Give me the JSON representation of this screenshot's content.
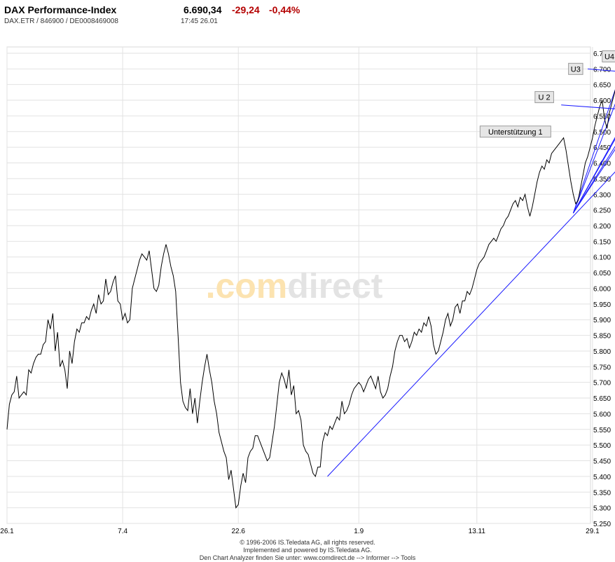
{
  "header": {
    "title": "DAX Performance-Index",
    "price": "6.690,34",
    "change": "-29,24",
    "change_pct": "-0,44%",
    "ids": "DAX.ETR  /  846900  /  DE0008469008",
    "time": "17:45  26.01"
  },
  "footer": {
    "line1": "© 1996-2006 IS.Teledata AG, all rights reserved.",
    "line2": "Implemented and powered by IS.Teledata AG.",
    "line3": "Den Chart Analyzer finden Sie unter: www.comdirect.de --> Informer --> Tools"
  },
  "watermark": {
    "part1": ".com",
    "part2": "direct"
  },
  "chart_data": {
    "type": "line",
    "ylim": [
      5250,
      6770
    ],
    "y_ticks": [
      "5.250",
      "5.300",
      "5.350",
      "5.400",
      "5.450",
      "5.500",
      "5.550",
      "5.600",
      "5.650",
      "5.700",
      "5.750",
      "5.800",
      "5.850",
      "5.900",
      "5.950",
      "6.000",
      "6.050",
      "6.100",
      "6.150",
      "6.200",
      "6.250",
      "6.300",
      "6.350",
      "6.400",
      "6.450",
      "6.500",
      "6.550",
      "6.600",
      "6.650",
      "6.700",
      "6.750"
    ],
    "x_ticks": [
      {
        "label": "26.1",
        "i": 0
      },
      {
        "label": "7.4",
        "i": 48
      },
      {
        "label": "22.6",
        "i": 96
      },
      {
        "label": "1.9",
        "i": 146
      },
      {
        "label": "13.11",
        "i": 195
      },
      {
        "label": "29.1",
        "i": 243
      }
    ],
    "line_color": "#000000",
    "grid": true,
    "series": [
      {
        "values": [
          5550,
          5630,
          5660,
          5670,
          5720,
          5650,
          5660,
          5670,
          5660,
          5740,
          5730,
          5760,
          5780,
          5790,
          5790,
          5820,
          5830,
          5900,
          5870,
          5920,
          5800,
          5860,
          5750,
          5770,
          5740,
          5680,
          5800,
          5760,
          5830,
          5870,
          5860,
          5890,
          5890,
          5910,
          5900,
          5930,
          5950,
          5920,
          5980,
          5950,
          5960,
          6030,
          5980,
          5990,
          6020,
          6040,
          5960,
          5950,
          5900,
          5920,
          5890,
          5900,
          6000,
          6030,
          6060,
          6090,
          6110,
          6100,
          6090,
          6120,
          6060,
          6000,
          5990,
          6010,
          6070,
          6110,
          6140,
          6110,
          6070,
          6040,
          5990,
          5850,
          5700,
          5640,
          5620,
          5610,
          5680,
          5600,
          5650,
          5570,
          5640,
          5700,
          5750,
          5790,
          5740,
          5700,
          5640,
          5600,
          5540,
          5510,
          5480,
          5460,
          5390,
          5420,
          5360,
          5300,
          5310,
          5370,
          5410,
          5380,
          5460,
          5480,
          5490,
          5530,
          5530,
          5510,
          5490,
          5470,
          5450,
          5460,
          5510,
          5560,
          5630,
          5700,
          5730,
          5710,
          5680,
          5740,
          5660,
          5690,
          5600,
          5610,
          5580,
          5500,
          5480,
          5470,
          5440,
          5410,
          5400,
          5430,
          5430,
          5510,
          5540,
          5530,
          5560,
          5550,
          5570,
          5590,
          5580,
          5640,
          5600,
          5610,
          5630,
          5660,
          5680,
          5690,
          5700,
          5690,
          5670,
          5690,
          5710,
          5720,
          5700,
          5680,
          5720,
          5670,
          5650,
          5660,
          5680,
          5720,
          5750,
          5800,
          5830,
          5850,
          5850,
          5830,
          5840,
          5810,
          5830,
          5860,
          5850,
          5870,
          5860,
          5890,
          5880,
          5910,
          5880,
          5820,
          5790,
          5800,
          5830,
          5860,
          5900,
          5920,
          5880,
          5900,
          5940,
          5950,
          5920,
          5960,
          5960,
          5990,
          5980,
          6000,
          6030,
          6060,
          6080,
          6090,
          6100,
          6120,
          6140,
          6150,
          6160,
          6150,
          6170,
          6190,
          6200,
          6220,
          6230,
          6250,
          6270,
          6280,
          6260,
          6290,
          6280,
          6300,
          6260,
          6230,
          6260,
          6300,
          6340,
          6370,
          6390,
          6380,
          6410,
          6400,
          6430,
          6440,
          6450,
          6460,
          6470,
          6480,
          6440,
          6390,
          6340,
          6300,
          6270,
          6280,
          6320,
          6360,
          6400,
          6420,
          6450,
          6480,
          6520,
          6550,
          6580,
          6600,
          6540,
          6510,
          6560,
          6590,
          6620,
          6650,
          6680,
          6700,
          6690,
          6650,
          6600,
          6610,
          6630,
          6600,
          6570,
          6620,
          6660,
          6690,
          6710,
          6700,
          6730,
          6740,
          6720,
          6700,
          6710,
          6740,
          6730,
          6720,
          6700,
          6710,
          6730,
          6690
        ]
      }
    ],
    "trend_lines": [
      {
        "from": [
          133,
          5400
        ],
        "to": [
          278,
          6580
        ]
      },
      {
        "from": [
          235,
          6240
        ],
        "to": [
          258,
          6760
        ]
      },
      {
        "from": [
          235,
          6240
        ],
        "to": [
          262,
          6780
        ]
      },
      {
        "from": [
          235,
          6240
        ],
        "to": [
          263,
          6620
        ]
      },
      {
        "from": [
          235,
          6240
        ],
        "to": [
          266,
          6670
        ]
      },
      {
        "from": [
          235,
          6240
        ],
        "to": [
          275,
          6730
        ]
      },
      {
        "from": [
          235,
          6240
        ],
        "to": [
          282,
          6790
        ]
      }
    ],
    "support_lines": [
      {
        "from": [
          254,
          6520
        ],
        "to": [
          278,
          6520
        ]
      },
      {
        "from": [
          265,
          6570
        ],
        "to": [
          278,
          6570
        ]
      },
      {
        "from": [
          270,
          6680
        ],
        "to": [
          278,
          6680
        ]
      },
      {
        "from": [
          274,
          6730
        ],
        "to": [
          278,
          6730
        ]
      }
    ],
    "annotations": [
      {
        "label": "Unterstützung 1",
        "box_at": [
          211,
          6500
        ],
        "arrow_to": null
      },
      {
        "label": "U 2",
        "box_at": [
          223,
          6610
        ],
        "arrow_from": [
          230,
          6585
        ],
        "arrow_to": [
          266,
          6565
        ]
      },
      {
        "label": "U3",
        "box_at": [
          236,
          6700
        ],
        "arrow_from": [
          241,
          6700
        ],
        "arrow_to": [
          273,
          6680
        ]
      },
      {
        "label": "U4",
        "box_at": [
          250,
          6740
        ],
        "arrow_from": [
          255,
          6750
        ],
        "arrow_to": [
          277,
          6730
        ]
      }
    ],
    "trend_color": "#1a1aff"
  }
}
